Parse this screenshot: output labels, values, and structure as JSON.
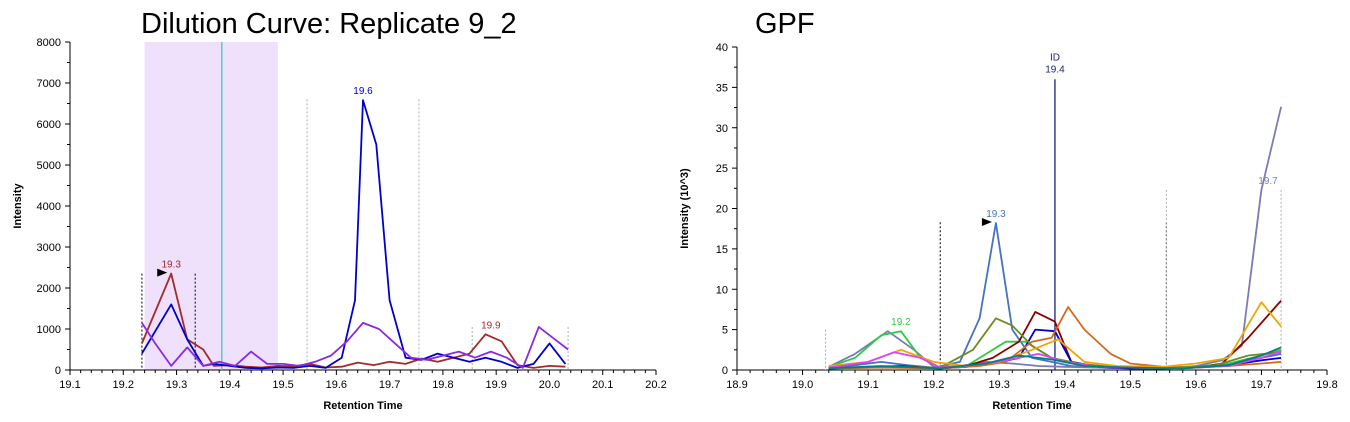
{
  "chart_data": [
    {
      "type": "line",
      "title": "Dilution Curve: Replicate 9_2",
      "xlabel": "Retention Time",
      "ylabel": "Intensity",
      "xlim": [
        19.1,
        20.2
      ],
      "ylim": [
        0,
        8000
      ],
      "xticks": [
        "19.1",
        "19.2",
        "19.3",
        "19.4",
        "19.5",
        "19.6",
        "19.7",
        "19.8",
        "19.9",
        "20.0",
        "20.1",
        "20.2"
      ],
      "yticks": [
        "0",
        "1000",
        "2000",
        "3000",
        "4000",
        "5000",
        "6000",
        "7000",
        "8000"
      ],
      "highlight_region": {
        "x": [
          19.24,
          19.49
        ],
        "color": "#efe0fb"
      },
      "id_line": {
        "x": 19.385,
        "color": "#40c8c0"
      },
      "boundaries": [
        {
          "x": 19.235,
          "style": "dotted-black",
          "top": 2350
        },
        {
          "x": 19.335,
          "style": "dotted-black",
          "top": 2350
        },
        {
          "x": 19.545,
          "style": "dotted-gray",
          "top": 6600
        },
        {
          "x": 19.755,
          "style": "dotted-gray",
          "top": 6600
        },
        {
          "x": 19.855,
          "style": "dotted-gray",
          "top": 1050
        },
        {
          "x": 20.035,
          "style": "dotted-gray",
          "top": 1050
        }
      ],
      "annotations": [
        {
          "text": "19.3",
          "x": 19.29,
          "y": 2350,
          "color": "#a52a2a",
          "marker": true
        },
        {
          "text": "19.6",
          "x": 19.65,
          "y": 6580,
          "color": "#0000cd",
          "marker": false
        },
        {
          "text": "19.9",
          "x": 19.89,
          "y": 870,
          "color": "#a52a2a",
          "marker": false
        }
      ],
      "series": [
        {
          "color": "#a52a2a",
          "x": [
            19.235,
            19.29,
            19.32,
            19.35,
            19.37,
            19.4,
            19.43,
            19.46,
            19.49,
            19.52,
            19.55,
            19.58,
            19.61,
            19.64,
            19.67,
            19.7,
            19.73,
            19.76,
            19.79,
            19.82,
            19.85,
            19.88,
            19.91,
            19.94,
            19.97,
            20.0,
            20.03
          ],
          "y": [
            650,
            2350,
            750,
            500,
            100,
            120,
            80,
            60,
            100,
            90,
            150,
            60,
            80,
            180,
            120,
            200,
            150,
            280,
            200,
            300,
            400,
            870,
            700,
            120,
            50,
            100,
            80
          ]
        },
        {
          "color": "#0000cd",
          "x": [
            19.235,
            19.29,
            19.32,
            19.35,
            19.37,
            19.4,
            19.43,
            19.46,
            19.49,
            19.52,
            19.55,
            19.58,
            19.61,
            19.635,
            19.65,
            19.675,
            19.7,
            19.73,
            19.76,
            19.79,
            19.82,
            19.85,
            19.88,
            19.91,
            19.94,
            19.97,
            20.0,
            20.03
          ],
          "y": [
            400,
            1600,
            750,
            100,
            150,
            100,
            50,
            40,
            60,
            50,
            100,
            50,
            300,
            1700,
            6580,
            5500,
            1700,
            300,
            250,
            400,
            300,
            200,
            300,
            200,
            50,
            150,
            650,
            150
          ]
        },
        {
          "color": "#8a2be2",
          "x": [
            19.235,
            19.26,
            19.29,
            19.32,
            19.35,
            19.38,
            19.41,
            19.44,
            19.47,
            19.5,
            19.53,
            19.56,
            19.59,
            19.62,
            19.65,
            19.68,
            19.71,
            19.74,
            19.77,
            19.8,
            19.83,
            19.86,
            19.89,
            19.92,
            19.95,
            19.98,
            20.01,
            20.035
          ],
          "y": [
            1150,
            650,
            100,
            550,
            100,
            200,
            100,
            450,
            150,
            150,
            100,
            200,
            350,
            700,
            1150,
            1000,
            650,
            300,
            250,
            350,
            450,
            300,
            450,
            300,
            50,
            1050,
            750,
            500
          ]
        }
      ]
    },
    {
      "type": "line",
      "title": "GPF",
      "xlabel": "Retention Time",
      "ylabel": "Intensity (10^3)",
      "xlim": [
        18.9,
        19.8
      ],
      "ylim": [
        0,
        40
      ],
      "xticks": [
        "18.9",
        "19.0",
        "19.1",
        "19.2",
        "19.3",
        "19.4",
        "19.5",
        "19.6",
        "19.7",
        "19.8"
      ],
      "yticks": [
        "0",
        "5",
        "10",
        "15",
        "20",
        "25",
        "30",
        "35",
        "40"
      ],
      "id_line": {
        "x": 19.385,
        "color": "#1a237e",
        "top": 36,
        "label": "ID",
        "value_label": "19.4"
      },
      "boundaries": [
        {
          "x": 19.035,
          "style": "dotted-gray",
          "top": 5
        },
        {
          "x": 19.21,
          "style": "dotted-black",
          "top": 18.3
        },
        {
          "x": 19.555,
          "style": "dotted-black",
          "top": 18.3
        },
        {
          "x": 19.555,
          "style": "dotted-gray",
          "top": 22.3
        },
        {
          "x": 19.73,
          "style": "dotted-gray",
          "top": 22.3
        }
      ],
      "annotations": [
        {
          "text": "19.3",
          "x": 19.295,
          "y": 18.2,
          "color": "#4472c4",
          "marker": true
        },
        {
          "text": "19.2",
          "x": 19.15,
          "y": 4.8,
          "color": "#2ecc40",
          "marker": false
        },
        {
          "text": "19.7",
          "x": 19.71,
          "y": 22.3,
          "color": "#8080c0",
          "marker": false
        }
      ],
      "series": [
        {
          "color": "#4472c4",
          "x": [
            19.04,
            19.08,
            19.12,
            19.16,
            19.2,
            19.24,
            19.27,
            19.295,
            19.32,
            19.35,
            19.38,
            19.41,
            19.45,
            19.5,
            19.55,
            19.6,
            19.65,
            19.7,
            19.73
          ],
          "y": [
            0.3,
            0.6,
            1.0,
            0.6,
            0.3,
            1.0,
            6.4,
            18.2,
            5.0,
            1.5,
            1.0,
            0.5,
            0.3,
            0.2,
            0.2,
            0.4,
            0.8,
            1.5,
            2.0
          ]
        },
        {
          "color": "#7a7ab8",
          "x": [
            19.04,
            19.08,
            19.13,
            19.17,
            19.2,
            19.24,
            19.28,
            19.32,
            19.36,
            19.4,
            19.45,
            19.5,
            19.55,
            19.6,
            19.64,
            19.67,
            19.7,
            19.73
          ],
          "y": [
            0.4,
            2.0,
            4.8,
            2.5,
            0.4,
            0.5,
            1.0,
            0.8,
            0.5,
            0.4,
            0.3,
            0.2,
            0.2,
            0.5,
            1.2,
            3.0,
            22.3,
            32.6
          ]
        },
        {
          "color": "#2ecc40",
          "x": [
            19.04,
            19.08,
            19.12,
            19.15,
            19.18,
            19.21,
            19.25,
            19.28,
            19.31,
            19.34,
            19.38,
            19.42,
            19.46,
            19.5,
            19.55,
            19.6,
            19.65,
            19.7,
            19.73
          ],
          "y": [
            0.4,
            1.5,
            4.3,
            4.8,
            1.5,
            0.3,
            0.5,
            2.0,
            3.5,
            3.5,
            1.5,
            0.8,
            0.4,
            0.3,
            0.3,
            0.4,
            0.8,
            1.8,
            2.5
          ]
        },
        {
          "color": "#8b0000",
          "x": [
            19.04,
            19.1,
            19.15,
            19.21,
            19.25,
            19.29,
            19.33,
            19.355,
            19.385,
            19.41,
            19.45,
            19.5,
            19.55,
            19.6,
            19.64,
            19.68,
            19.73
          ],
          "y": [
            0.2,
            0.4,
            0.5,
            0.2,
            0.5,
            1.5,
            3.5,
            7.2,
            6.0,
            1.0,
            0.4,
            0.3,
            0.2,
            0.3,
            0.8,
            4.0,
            8.6
          ]
        },
        {
          "color": "#0000cd",
          "x": [
            19.04,
            19.1,
            19.15,
            19.21,
            19.25,
            19.29,
            19.33,
            19.355,
            19.385,
            19.41,
            19.45,
            19.5,
            19.55,
            19.6,
            19.65,
            19.7,
            19.73
          ],
          "y": [
            0.2,
            0.3,
            0.4,
            0.2,
            0.4,
            0.8,
            1.5,
            5.0,
            4.8,
            1.0,
            0.4,
            0.2,
            0.2,
            0.3,
            0.6,
            1.2,
            1.5
          ]
        },
        {
          "color": "#d2691e",
          "x": [
            19.04,
            19.12,
            19.21,
            19.27,
            19.31,
            19.35,
            19.38,
            19.405,
            19.43,
            19.47,
            19.5,
            19.55,
            19.6,
            19.65,
            19.7,
            19.73
          ],
          "y": [
            0.2,
            0.3,
            0.2,
            0.5,
            1.0,
            3.5,
            4.0,
            7.8,
            5.0,
            2.0,
            0.8,
            0.4,
            0.3,
            0.5,
            0.8,
            1.0
          ]
        },
        {
          "color": "#6b8e23",
          "x": [
            19.04,
            19.12,
            19.21,
            19.26,
            19.295,
            19.32,
            19.35,
            19.38,
            19.42,
            19.47,
            19.52,
            19.58,
            19.63,
            19.68,
            19.73
          ],
          "y": [
            0.2,
            0.4,
            0.3,
            2.5,
            6.4,
            5.5,
            3.0,
            1.5,
            0.8,
            0.4,
            0.3,
            0.3,
            0.6,
            1.8,
            2.2
          ]
        },
        {
          "color": "#f0a500",
          "x": [
            19.04,
            19.1,
            19.15,
            19.2,
            19.25,
            19.3,
            19.35,
            19.39,
            19.43,
            19.48,
            19.55,
            19.6,
            19.65,
            19.7,
            19.73
          ],
          "y": [
            0.5,
            1.0,
            2.5,
            1.0,
            0.5,
            1.0,
            2.5,
            3.8,
            1.0,
            0.5,
            0.4,
            0.8,
            1.5,
            8.4,
            5.4
          ]
        },
        {
          "color": "#e040fb",
          "x": [
            19.04,
            19.1,
            19.14,
            19.18,
            19.21,
            19.26,
            19.31,
            19.36,
            19.4,
            19.45,
            19.55,
            19.6,
            19.65,
            19.7,
            19.73
          ],
          "y": [
            0.3,
            1.0,
            2.2,
            1.5,
            0.3,
            0.6,
            1.2,
            2.0,
            1.0,
            0.4,
            0.2,
            0.3,
            0.5,
            1.5,
            2.3
          ]
        },
        {
          "color": "#008080",
          "x": [
            19.04,
            19.12,
            19.21,
            19.28,
            19.33,
            19.38,
            19.43,
            19.5,
            19.58,
            19.65,
            19.7,
            19.73
          ],
          "y": [
            0.2,
            0.5,
            0.2,
            0.8,
            1.8,
            1.3,
            0.5,
            0.3,
            0.2,
            0.6,
            1.8,
            2.8
          ]
        }
      ]
    }
  ]
}
